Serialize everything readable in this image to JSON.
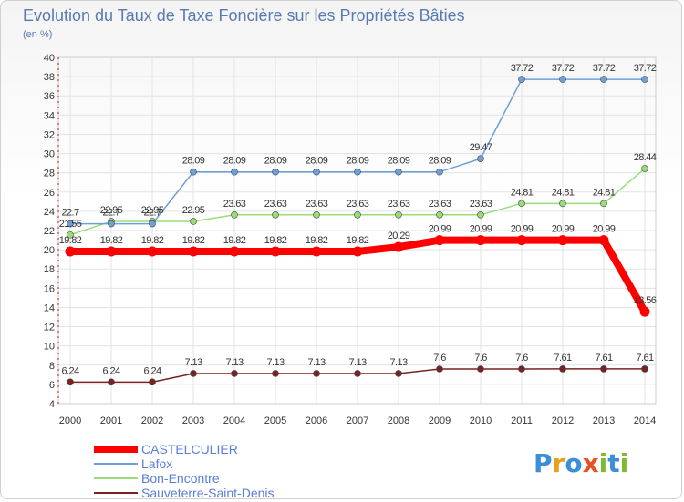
{
  "chart_data": {
    "type": "line",
    "title": "Evolution du Taux de Taxe Foncière sur les Propriétés Bâties",
    "subtitle": "(en %)",
    "x": [
      "2000",
      "2001",
      "2002",
      "2003",
      "2004",
      "2005",
      "2006",
      "2007",
      "2008",
      "2009",
      "2010",
      "2011",
      "2012",
      "2013",
      "2014"
    ],
    "ylim": [
      4,
      40
    ],
    "yticks": [
      4,
      6,
      8,
      10,
      12,
      14,
      16,
      18,
      20,
      22,
      24,
      26,
      28,
      30,
      32,
      34,
      36,
      38,
      40
    ],
    "grid": true,
    "legend_position": "bottom-left",
    "series": [
      {
        "name": "CASTELCULIER",
        "color": "#ff0000",
        "values": [
          19.82,
          19.82,
          19.82,
          19.82,
          19.82,
          19.82,
          19.82,
          19.82,
          20.29,
          20.99,
          20.99,
          20.99,
          20.99,
          20.99,
          13.56
        ],
        "labels": [
          "19.82",
          "19.82",
          "19.82",
          "19.82",
          "19.82",
          "19.82",
          "19.82",
          "19.82",
          "20.29",
          "20.99",
          "20.99",
          "20.99",
          "20.99",
          "20.99",
          "13.56"
        ]
      },
      {
        "name": "Lafox",
        "color": "#6e9fd9",
        "values": [
          22.7,
          22.7,
          22.7,
          28.09,
          28.09,
          28.09,
          28.09,
          28.09,
          28.09,
          28.09,
          29.47,
          37.72,
          37.72,
          37.72,
          37.72
        ],
        "labels": [
          "22.7",
          "22.7",
          "22.7",
          "28.09",
          "28.09",
          "28.09",
          "28.09",
          "28.09",
          "28.09",
          "28.09",
          "29.47",
          "37.72",
          "37.72",
          "37.72",
          "37.72"
        ]
      },
      {
        "name": "Bon-Encontre",
        "color": "#99dd77",
        "values": [
          21.55,
          22.95,
          22.95,
          22.95,
          23.63,
          23.63,
          23.63,
          23.63,
          23.63,
          23.63,
          23.63,
          24.81,
          24.81,
          24.81,
          28.44
        ],
        "labels": [
          "21.55",
          "22.95",
          "22.95",
          "22.95",
          "23.63",
          "23.63",
          "23.63",
          "23.63",
          "23.63",
          "23.63",
          "23.63",
          "24.81",
          "24.81",
          "24.81",
          "28.44"
        ]
      },
      {
        "name": "Sauveterre-Saint-Denis",
        "color": "#7a2222",
        "values": [
          6.24,
          6.24,
          6.24,
          7.13,
          7.13,
          7.13,
          7.13,
          7.13,
          7.13,
          7.6,
          7.6,
          7.6,
          7.61,
          7.61,
          7.61
        ],
        "labels": [
          "6.24",
          "6.24",
          "6.24",
          "7.13",
          "7.13",
          "7.13",
          "7.13",
          "7.13",
          "7.13",
          "7.6",
          "7.6",
          "7.6",
          "7.61",
          "7.61",
          "7.61"
        ]
      }
    ]
  },
  "brand": {
    "letters": [
      "P",
      "r",
      "o",
      "x",
      "i",
      "t",
      "i"
    ],
    "colors": [
      "#3a8fd8",
      "#e8a020",
      "#3a8fd8",
      "#e85020",
      "#80b830",
      "#3a8fd8",
      "#80b830"
    ]
  }
}
